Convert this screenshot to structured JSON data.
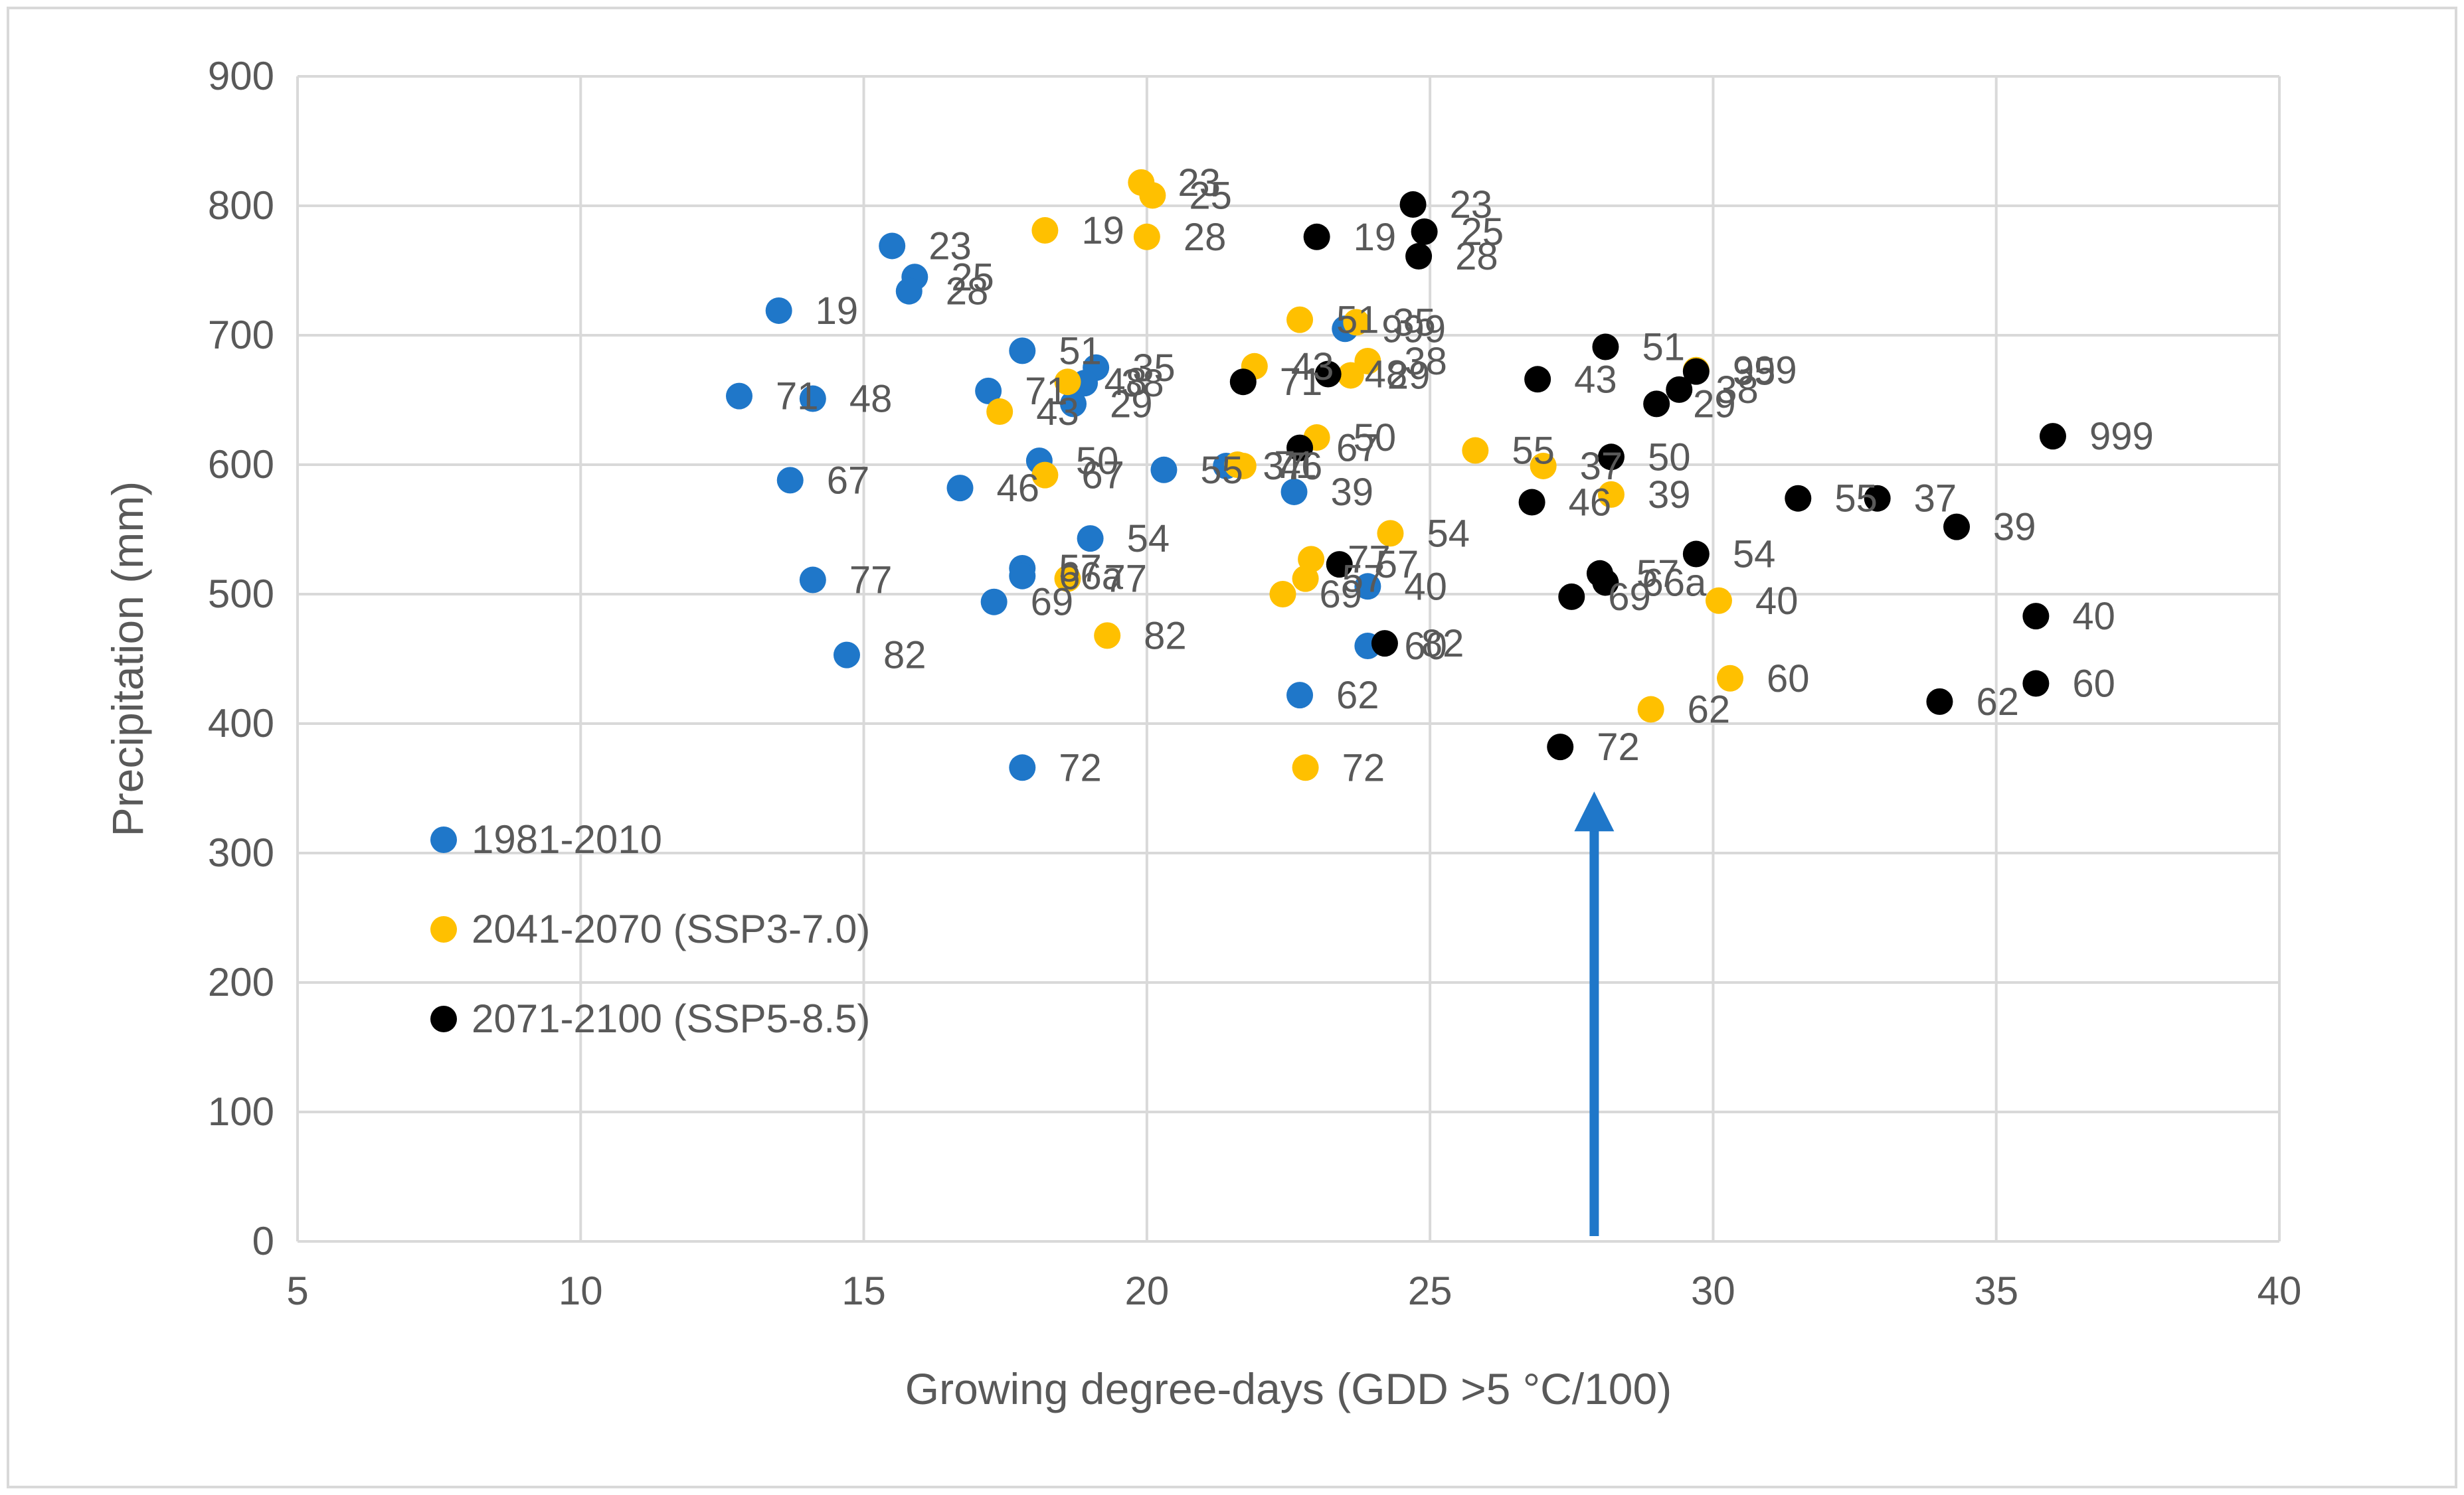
{
  "chart_data": {
    "type": "scatter",
    "title": "",
    "xlabel": "Growing degree-days (GDD >5 °C/100)",
    "ylabel": "Precipitation (mm)",
    "xlim": [
      5,
      40
    ],
    "ylim": [
      0,
      900
    ],
    "xticks": [
      5,
      10,
      15,
      20,
      25,
      30,
      35,
      40
    ],
    "yticks": [
      0,
      100,
      200,
      300,
      400,
      500,
      600,
      700,
      800,
      900
    ],
    "grid": true,
    "legend_position": "left",
    "series": [
      {
        "name": "1981-2010",
        "color": "#1f77c9",
        "points": [
          {
            "label": "23",
            "x": 15.5,
            "y": 769
          },
          {
            "label": "25",
            "x": 15.9,
            "y": 745
          },
          {
            "label": "28",
            "x": 15.8,
            "y": 734
          },
          {
            "label": "19",
            "x": 13.5,
            "y": 719
          },
          {
            "label": "71",
            "x": 12.8,
            "y": 653
          },
          {
            "label": "48",
            "x": 14.1,
            "y": 651
          },
          {
            "label": "67",
            "x": 13.7,
            "y": 588
          },
          {
            "label": "77",
            "x": 14.1,
            "y": 511
          },
          {
            "label": "82",
            "x": 14.7,
            "y": 453
          },
          {
            "label": "51",
            "x": 17.8,
            "y": 688
          },
          {
            "label": "35",
            "x": 19.1,
            "y": 675
          },
          {
            "label": "71",
            "x": 17.2,
            "y": 657
          },
          {
            "label": "38",
            "x": 18.9,
            "y": 663
          },
          {
            "label": "29",
            "x": 18.7,
            "y": 647
          },
          {
            "label": "50",
            "x": 18.1,
            "y": 603
          },
          {
            "label": "46",
            "x": 16.7,
            "y": 582
          },
          {
            "label": "57",
            "x": 17.8,
            "y": 520
          },
          {
            "label": "66a",
            "x": 17.8,
            "y": 514
          },
          {
            "label": "69",
            "x": 17.3,
            "y": 494
          },
          {
            "label": "54",
            "x": 19.0,
            "y": 543
          },
          {
            "label": "55",
            "x": 20.3,
            "y": 596
          },
          {
            "label": "37",
            "x": 21.4,
            "y": 599
          },
          {
            "label": "39",
            "x": 22.6,
            "y": 579
          },
          {
            "label": "72",
            "x": 17.8,
            "y": 366
          },
          {
            "label": "40",
            "x": 23.9,
            "y": 506
          },
          {
            "label": "60",
            "x": 23.9,
            "y": 460
          },
          {
            "label": "62",
            "x": 22.7,
            "y": 422
          },
          {
            "label": "999",
            "x": 23.5,
            "y": 705
          }
        ]
      },
      {
        "name": "2041-2070 (SSP3-7.0)",
        "color": "#ffc000",
        "points": [
          {
            "label": "23",
            "x": 19.9,
            "y": 818
          },
          {
            "label": "25",
            "x": 20.1,
            "y": 808
          },
          {
            "label": "19",
            "x": 18.2,
            "y": 781
          },
          {
            "label": "28",
            "x": 20.0,
            "y": 776
          },
          {
            "label": "48",
            "x": 18.6,
            "y": 664
          },
          {
            "label": "43",
            "x": 17.4,
            "y": 641
          },
          {
            "label": "67",
            "x": 18.2,
            "y": 592
          },
          {
            "label": "77",
            "x": 18.6,
            "y": 512
          },
          {
            "label": "82",
            "x": 19.3,
            "y": 468
          },
          {
            "label": "51",
            "x": 22.7,
            "y": 712
          },
          {
            "label": "35",
            "x": 23.7,
            "y": 710
          },
          {
            "label": "43",
            "x": 21.9,
            "y": 676
          },
          {
            "label": "38",
            "x": 23.9,
            "y": 680
          },
          {
            "label": "29",
            "x": 23.6,
            "y": 669
          },
          {
            "label": "71",
            "x": 21.6,
            "y": 600
          },
          {
            "label": "50",
            "x": 23.0,
            "y": 621
          },
          {
            "label": "46",
            "x": 21.7,
            "y": 599
          },
          {
            "label": "54",
            "x": 24.3,
            "y": 547
          },
          {
            "label": "77",
            "x": 22.9,
            "y": 527
          },
          {
            "label": "57",
            "x": 22.8,
            "y": 512
          },
          {
            "label": "69",
            "x": 22.4,
            "y": 500
          },
          {
            "label": "72",
            "x": 22.8,
            "y": 366
          },
          {
            "label": "55",
            "x": 25.8,
            "y": 611
          },
          {
            "label": "37",
            "x": 27.0,
            "y": 599
          },
          {
            "label": "39",
            "x": 28.2,
            "y": 577
          },
          {
            "label": "40",
            "x": 30.1,
            "y": 495
          },
          {
            "label": "60",
            "x": 30.3,
            "y": 435
          },
          {
            "label": "62",
            "x": 28.9,
            "y": 411
          },
          {
            "label": "999",
            "x": 29.7,
            "y": 673
          }
        ]
      },
      {
        "name": "2071-2100 (SSP5-8.5)",
        "color": "#000000",
        "points": [
          {
            "label": "23",
            "x": 24.7,
            "y": 801
          },
          {
            "label": "25",
            "x": 24.9,
            "y": 780
          },
          {
            "label": "28",
            "x": 24.8,
            "y": 761
          },
          {
            "label": "19",
            "x": 23.0,
            "y": 776
          },
          {
            "label": "71",
            "x": 21.7,
            "y": 664
          },
          {
            "label": "48",
            "x": 23.2,
            "y": 670
          },
          {
            "label": "67",
            "x": 22.7,
            "y": 613
          },
          {
            "label": "57",
            "x": 23.4,
            "y": 523
          },
          {
            "label": "82",
            "x": 24.2,
            "y": 462
          },
          {
            "label": "51",
            "x": 28.1,
            "y": 691
          },
          {
            "label": "35",
            "x": 29.7,
            "y": 672
          },
          {
            "label": "43",
            "x": 26.9,
            "y": 666
          },
          {
            "label": "38",
            "x": 29.4,
            "y": 658
          },
          {
            "label": "29",
            "x": 29.0,
            "y": 647
          },
          {
            "label": "50",
            "x": 28.2,
            "y": 606
          },
          {
            "label": "46",
            "x": 26.8,
            "y": 571
          },
          {
            "label": "57",
            "x": 28.0,
            "y": 516
          },
          {
            "label": "66a",
            "x": 28.1,
            "y": 509
          },
          {
            "label": "69",
            "x": 27.5,
            "y": 498
          },
          {
            "label": "54",
            "x": 29.7,
            "y": 531
          },
          {
            "label": "72",
            "x": 27.3,
            "y": 382
          },
          {
            "label": "55",
            "x": 31.5,
            "y": 574
          },
          {
            "label": "37",
            "x": 32.9,
            "y": 574
          },
          {
            "label": "39",
            "x": 34.3,
            "y": 552
          },
          {
            "label": "999",
            "x": 36.0,
            "y": 622
          },
          {
            "label": "40",
            "x": 35.7,
            "y": 483
          },
          {
            "label": "60",
            "x": 35.7,
            "y": 431
          },
          {
            "label": "62",
            "x": 34.0,
            "y": 417
          }
        ]
      }
    ],
    "annotations": [
      {
        "type": "arrow",
        "color": "#1f77c9",
        "direction": "up",
        "x": 27.9,
        "y_from": 0,
        "y_to": 345
      }
    ]
  }
}
